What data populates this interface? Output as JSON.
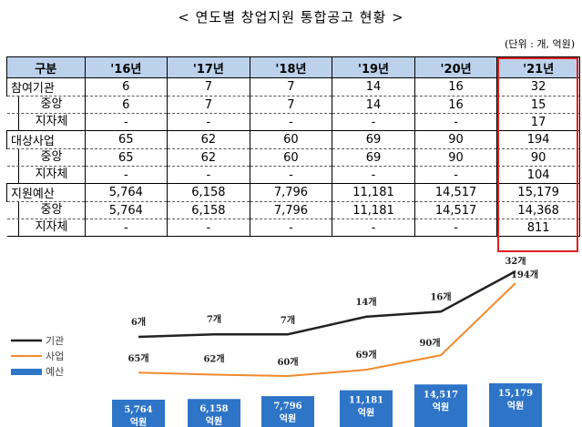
{
  "title": "< 연도별 창업지원 통합공고 현황 >",
  "unit": "(단위 : 개, 억원)",
  "table": {
    "header": [
      "구분",
      "'16년",
      "'17년",
      "'18년",
      "'19년",
      "'20년",
      "'21년"
    ],
    "rows": [
      {
        "label": "참여기관",
        "values": [
          "6",
          "7",
          "7",
          "14",
          "16",
          "32"
        ],
        "level": "main"
      },
      {
        "label": "중앙",
        "values": [
          "6",
          "7",
          "7",
          "14",
          "16",
          "15"
        ],
        "level": "sub"
      },
      {
        "label": "지자체",
        "values": [
          "-",
          "-",
          "-",
          "-",
          "-",
          "17"
        ],
        "level": "sub"
      },
      {
        "label": "대상사업",
        "values": [
          "65",
          "62",
          "60",
          "69",
          "90",
          "194"
        ],
        "level": "main"
      },
      {
        "label": "중앙",
        "values": [
          "65",
          "62",
          "60",
          "69",
          "90",
          "90"
        ],
        "level": "sub"
      },
      {
        "label": "지자체",
        "values": [
          "-",
          "-",
          "-",
          "-",
          "-",
          "104"
        ],
        "level": "sub"
      },
      {
        "label": "지원예산",
        "values": [
          "5,764",
          "6,158",
          "7,796",
          "11,181",
          "14,517",
          "15,179"
        ],
        "level": "main"
      },
      {
        "label": "중앙",
        "values": [
          "5,764",
          "6,158",
          "7,796",
          "11,181",
          "14,517",
          "14,368"
        ],
        "level": "sub"
      },
      {
        "label": "지자체",
        "values": [
          "-",
          "-",
          "-",
          "-",
          "-",
          "811"
        ],
        "level": "sub"
      }
    ]
  },
  "chart_data": {
    "type": "line",
    "categories": [
      "'16년",
      "'17년",
      "'18년",
      "'19년",
      "'20년",
      "'21년"
    ],
    "series": [
      {
        "name": "기관",
        "kind": "line",
        "color": "#222222",
        "values": [
          6,
          7,
          7,
          14,
          16,
          32
        ],
        "labels": [
          "6개",
          "7개",
          "7개",
          "14개",
          "16개",
          "32개"
        ]
      },
      {
        "name": "사업",
        "kind": "line",
        "color": "#f08a2c",
        "values": [
          65,
          62,
          60,
          69,
          90,
          194
        ],
        "labels": [
          "65개",
          "62개",
          "60개",
          "69개",
          "90개",
          "194개"
        ]
      },
      {
        "name": "예산",
        "kind": "bar",
        "color": "#2e74c7",
        "values": [
          5764,
          6158,
          7796,
          11181,
          14517,
          15179
        ],
        "labels": [
          "5,764\n억원",
          "6,158\n억원",
          "7,796\n억원",
          "11,181\n억원",
          "14,517\n억원",
          "15,179\n억원"
        ]
      }
    ],
    "legend": "left",
    "grid": false
  }
}
